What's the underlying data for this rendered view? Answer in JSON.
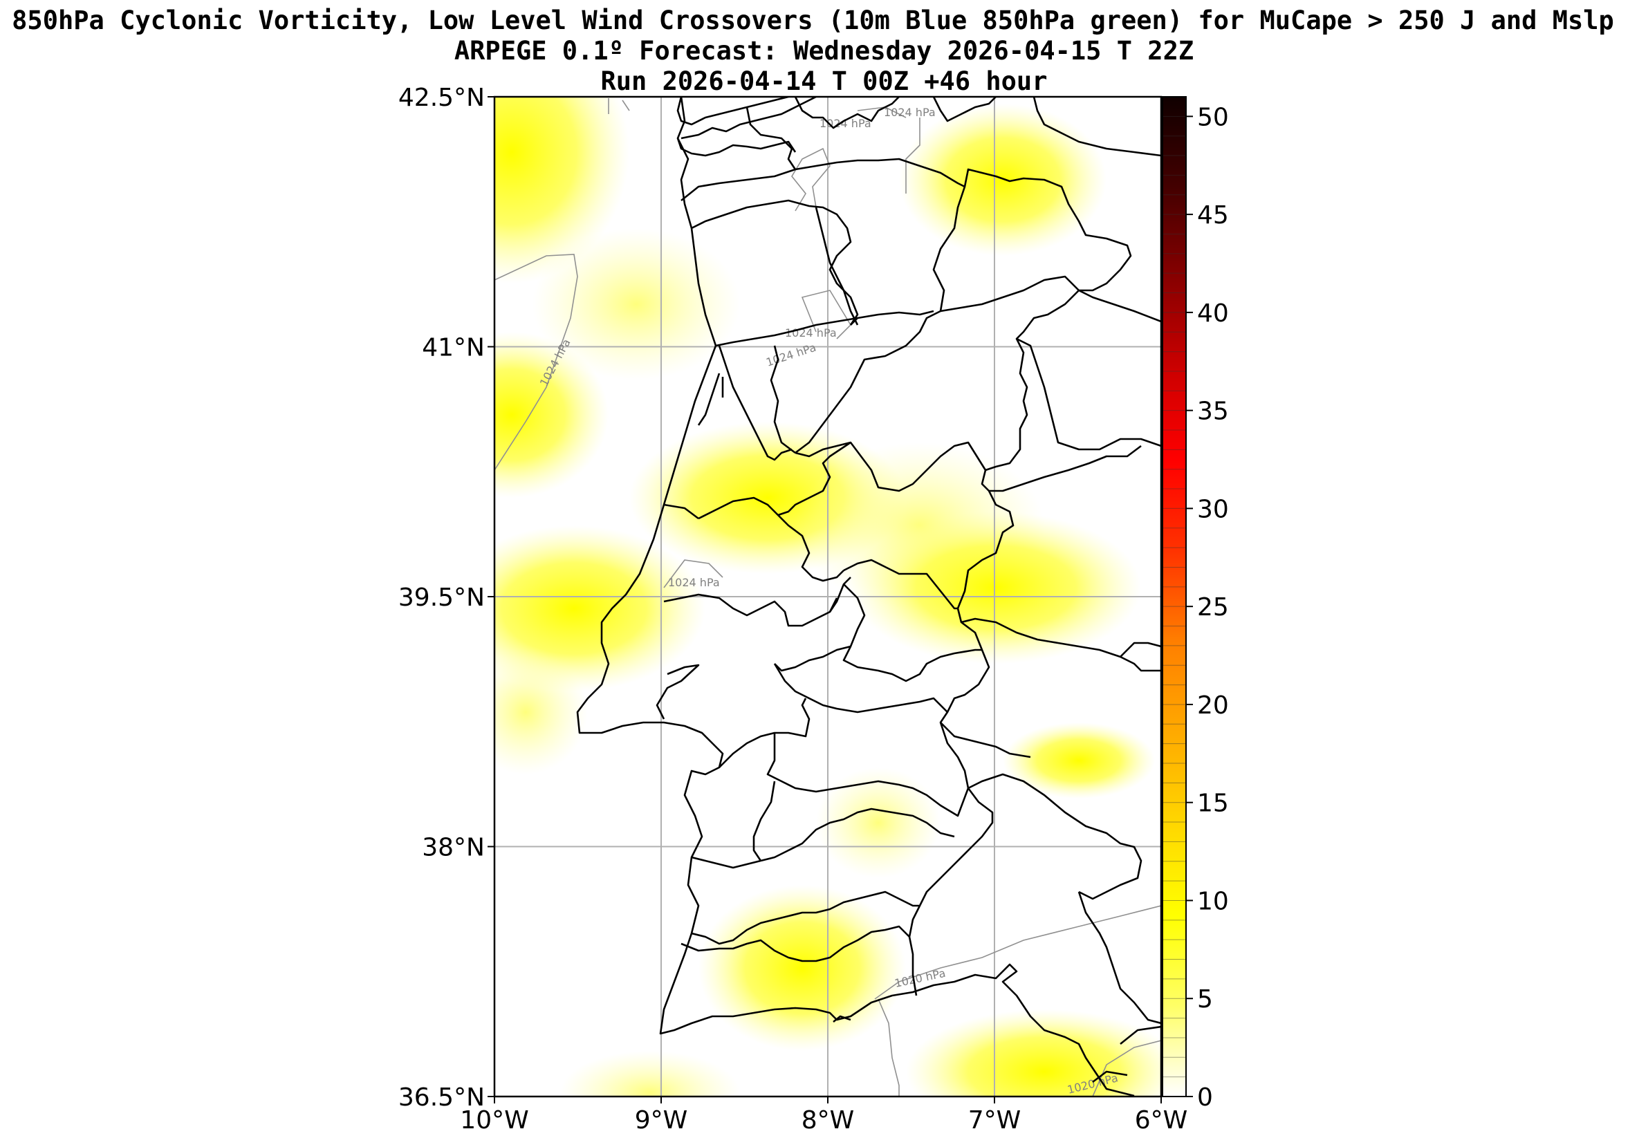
{
  "title": {
    "line1": "850hPa Cyclonic Vorticity, Low Level Wind Crossovers (10m Blue 850hPa green) for MuCape > 250 J and Mslp",
    "line2": "ARPEGE 0.1º Forecast: Wednesday 2026-04-15 T 22Z",
    "line3": "Run 2026-04-14 T 00Z +46 hour"
  },
  "map": {
    "lon_range": [
      -10,
      -6
    ],
    "lat_range": [
      36.5,
      42.5
    ],
    "lon_ticks": [
      "10°W",
      "9°W",
      "8°W",
      "7°W",
      "6°W"
    ],
    "lat_ticks": [
      "42.5°N",
      "41°N",
      "39.5°N",
      "38°N",
      "36.5°N"
    ],
    "isobar_labels": [
      "1024 hPa",
      "1024 hPa",
      "1024 hPa",
      "1024 hPa",
      "1024 hPa",
      "1024 hPa",
      "1020 hPa",
      "1020 hPa"
    ],
    "colors": {
      "fill": "#ffff00",
      "coast": "#000000",
      "isobar": "#808080",
      "grid": "#b0b0b0"
    }
  },
  "colorbar": {
    "range": [
      0,
      51
    ],
    "tick_labels": [
      "0",
      "5",
      "10",
      "15",
      "20",
      "25",
      "30",
      "35",
      "40",
      "45",
      "50"
    ],
    "colors": [
      "#ffffff",
      "#ffff66",
      "#ffff00",
      "#ffd700",
      "#ffaa00",
      "#ff7f00",
      "#ff3300",
      "#ff0000",
      "#cc0000",
      "#880000",
      "#440000",
      "#100000"
    ]
  }
}
